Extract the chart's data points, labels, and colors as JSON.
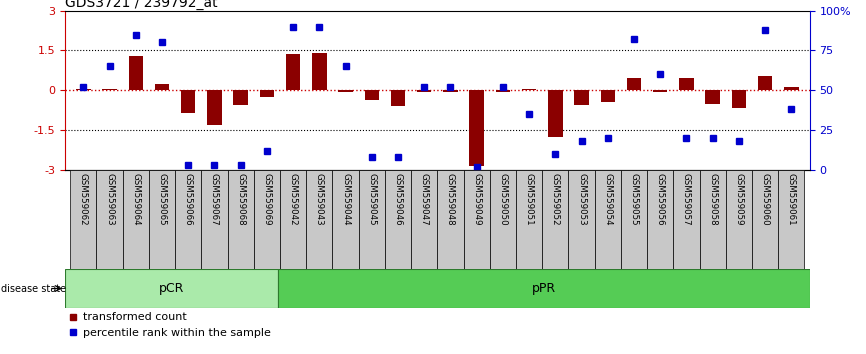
{
  "title": "GDS3721 / 239792_at",
  "samples": [
    "GSM559062",
    "GSM559063",
    "GSM559064",
    "GSM559065",
    "GSM559066",
    "GSM559067",
    "GSM559068",
    "GSM559069",
    "GSM559042",
    "GSM559043",
    "GSM559044",
    "GSM559045",
    "GSM559046",
    "GSM559047",
    "GSM559048",
    "GSM559049",
    "GSM559050",
    "GSM559051",
    "GSM559052",
    "GSM559053",
    "GSM559054",
    "GSM559055",
    "GSM559056",
    "GSM559057",
    "GSM559058",
    "GSM559059",
    "GSM559060",
    "GSM559061"
  ],
  "bar_values": [
    0.05,
    0.05,
    1.3,
    0.25,
    -0.85,
    -1.3,
    -0.55,
    -0.25,
    1.38,
    1.42,
    -0.08,
    -0.35,
    -0.6,
    -0.05,
    -0.05,
    -2.85,
    -0.05,
    0.05,
    -1.75,
    -0.55,
    -0.45,
    0.45,
    -0.05,
    0.45,
    -0.5,
    -0.65,
    0.55,
    0.12
  ],
  "percentile_values": [
    52,
    65,
    85,
    80,
    3,
    3,
    3,
    12,
    90,
    90,
    65,
    8,
    8,
    52,
    52,
    2,
    52,
    35,
    10,
    18,
    20,
    82,
    60,
    20,
    20,
    18,
    88,
    38
  ],
  "pcr_count": 8,
  "bar_color": "#8B0000",
  "dot_color": "#0000CD",
  "hline_color": "#CC0000",
  "dotline_color": "black",
  "left_axis_color": "#CC0000",
  "right_axis_color": "#0000CD",
  "pcr_color": "#AAEAAA",
  "ppr_color": "#55CC55",
  "tick_bg_color": "#C8C8C8",
  "yticks_left": [
    -3,
    -1.5,
    0,
    1.5,
    3
  ],
  "yticks_right": [
    0,
    25,
    50,
    75,
    100
  ],
  "ylim": [
    -3,
    3
  ],
  "y2lim": [
    0,
    100
  ]
}
